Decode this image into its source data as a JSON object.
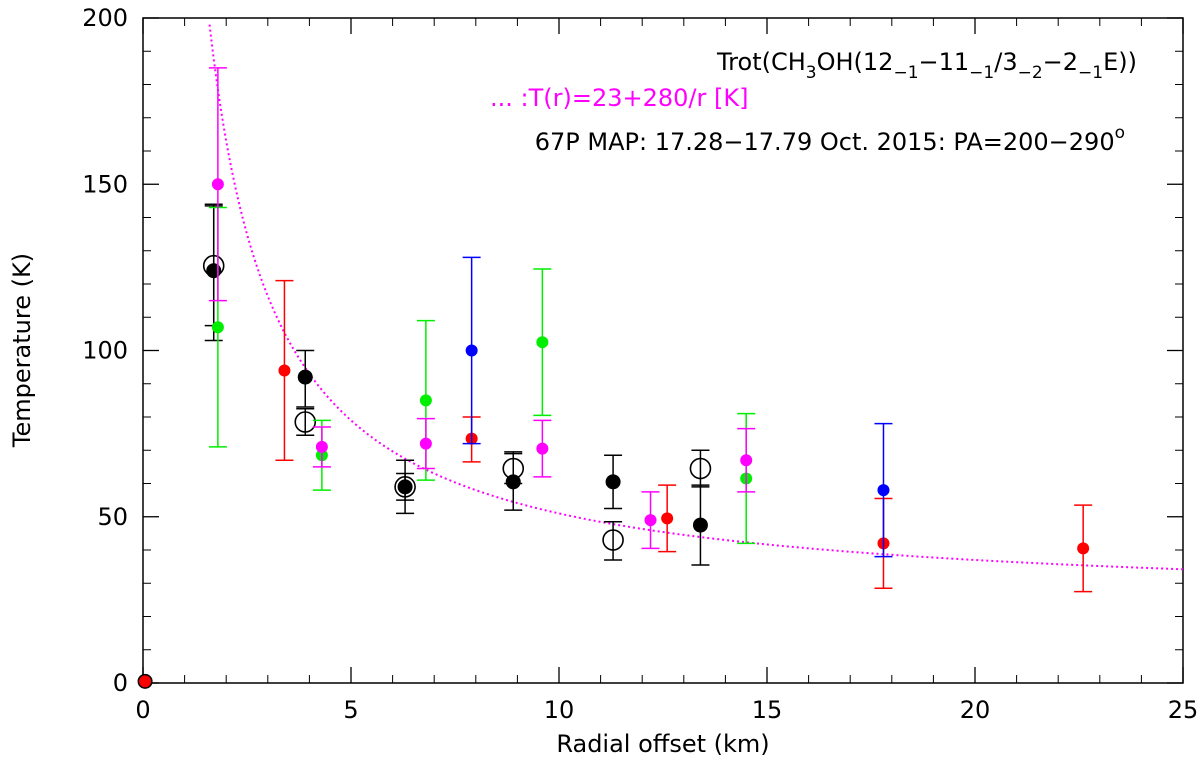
{
  "chart_data": {
    "type": "scatter",
    "xlabel": "Radial offset (km)",
    "ylabel": "Temperature (K)",
    "xlim": [
      0,
      25
    ],
    "ylim": [
      0,
      200
    ],
    "xticks": [
      0,
      5,
      10,
      15,
      20,
      25
    ],
    "xtick_labels": [
      "0",
      "5",
      "10",
      "15",
      "20",
      "25"
    ],
    "yticks": [
      0,
      50,
      100,
      150,
      200
    ],
    "ytick_labels": [
      "0",
      "50",
      "100",
      "150",
      "200"
    ],
    "annotations": {
      "line1_prefix": "Trot(CH",
      "line1_sub3": "3",
      "line1_mid": "OH(12",
      "line1_sub_a": "−1",
      "line1_mid2": "−11",
      "line1_sub_b": "−1",
      "line1_mid3": "/3",
      "line1_sub_c": "−2",
      "line1_mid4": "−2",
      "line1_sub_d": "−1",
      "line1_suffix": "E))",
      "line2": "... :T(r)=23+280/r [K]",
      "line3_prefix": "67P MAP: 17.28−17.79 Oct. 2015: PA=200−290",
      "line3_degree": "o"
    },
    "fit": {
      "label": "T(r)=23+280/r",
      "a": 23,
      "b": 280,
      "x_start": 1.5,
      "x_end": 25,
      "color": "#ff00ff"
    },
    "colors": {
      "black": "#000000",
      "red": "#ff0000",
      "green": "#00ee00",
      "blue": "#0000ff",
      "magenta": "#ff00ff"
    },
    "series": [
      {
        "name": "black-filled",
        "color": "black",
        "filled": true,
        "points": [
          {
            "x": 1.7,
            "y": 124,
            "lo": 103,
            "hi": 144
          },
          {
            "x": 3.9,
            "y": 92,
            "lo": 83,
            "hi": 100
          },
          {
            "x": 6.3,
            "y": 59,
            "lo": 51,
            "hi": 67
          },
          {
            "x": 8.9,
            "y": 60.5,
            "lo": 52,
            "hi": 69.5
          },
          {
            "x": 11.3,
            "y": 60.5,
            "lo": 52.5,
            "hi": 68.5
          },
          {
            "x": 13.4,
            "y": 47.5,
            "lo": 35.5,
            "hi": 59.5
          },
          {
            "x": 0.05,
            "y": 0.5,
            "lo": 0.5,
            "hi": 0.5
          }
        ]
      },
      {
        "name": "black-open",
        "color": "black",
        "filled": false,
        "points": [
          {
            "x": 1.7,
            "y": 125.5,
            "lo": 107.5,
            "hi": 143.5
          },
          {
            "x": 3.9,
            "y": 78.5,
            "lo": 74.5,
            "hi": 82.5
          },
          {
            "x": 6.3,
            "y": 59,
            "lo": 55,
            "hi": 63
          },
          {
            "x": 8.9,
            "y": 64.5,
            "lo": 60,
            "hi": 69
          },
          {
            "x": 11.3,
            "y": 43,
            "lo": 37,
            "hi": 48.5
          },
          {
            "x": 13.4,
            "y": 64.5,
            "lo": 59,
            "hi": 70
          }
        ]
      },
      {
        "name": "red",
        "color": "red",
        "filled": true,
        "points": [
          {
            "x": 3.4,
            "y": 94,
            "lo": 67,
            "hi": 121
          },
          {
            "x": 7.9,
            "y": 73.5,
            "lo": 66.5,
            "hi": 80
          },
          {
            "x": 12.6,
            "y": 49.5,
            "lo": 39.5,
            "hi": 59.5
          },
          {
            "x": 17.8,
            "y": 42,
            "lo": 28.5,
            "hi": 55.5
          },
          {
            "x": 22.6,
            "y": 40.5,
            "lo": 27.5,
            "hi": 53.5
          },
          {
            "x": 0.05,
            "y": 0.5,
            "lo": 0.5,
            "hi": 0.5
          }
        ]
      },
      {
        "name": "green",
        "color": "green",
        "filled": true,
        "points": [
          {
            "x": 1.8,
            "y": 107,
            "lo": 71,
            "hi": 143
          },
          {
            "x": 4.3,
            "y": 68.5,
            "lo": 58,
            "hi": 79
          },
          {
            "x": 6.8,
            "y": 85,
            "lo": 61,
            "hi": 109
          },
          {
            "x": 9.6,
            "y": 102.5,
            "lo": 80.5,
            "hi": 124.5
          },
          {
            "x": 14.5,
            "y": 61.5,
            "lo": 42,
            "hi": 81
          }
        ]
      },
      {
        "name": "blue",
        "color": "blue",
        "filled": true,
        "points": [
          {
            "x": 7.9,
            "y": 100,
            "lo": 72,
            "hi": 128
          },
          {
            "x": 17.8,
            "y": 58,
            "lo": 38,
            "hi": 78
          }
        ]
      },
      {
        "name": "magenta",
        "color": "magenta",
        "filled": true,
        "points": [
          {
            "x": 1.8,
            "y": 150,
            "lo": 115,
            "hi": 185
          },
          {
            "x": 4.3,
            "y": 71,
            "lo": 65,
            "hi": 77
          },
          {
            "x": 6.8,
            "y": 72,
            "lo": 64.5,
            "hi": 79.5
          },
          {
            "x": 9.6,
            "y": 70.5,
            "lo": 62,
            "hi": 79
          },
          {
            "x": 12.2,
            "y": 49,
            "lo": 40.5,
            "hi": 57.5
          },
          {
            "x": 14.5,
            "y": 67,
            "lo": 57.5,
            "hi": 76.5
          }
        ]
      }
    ]
  }
}
